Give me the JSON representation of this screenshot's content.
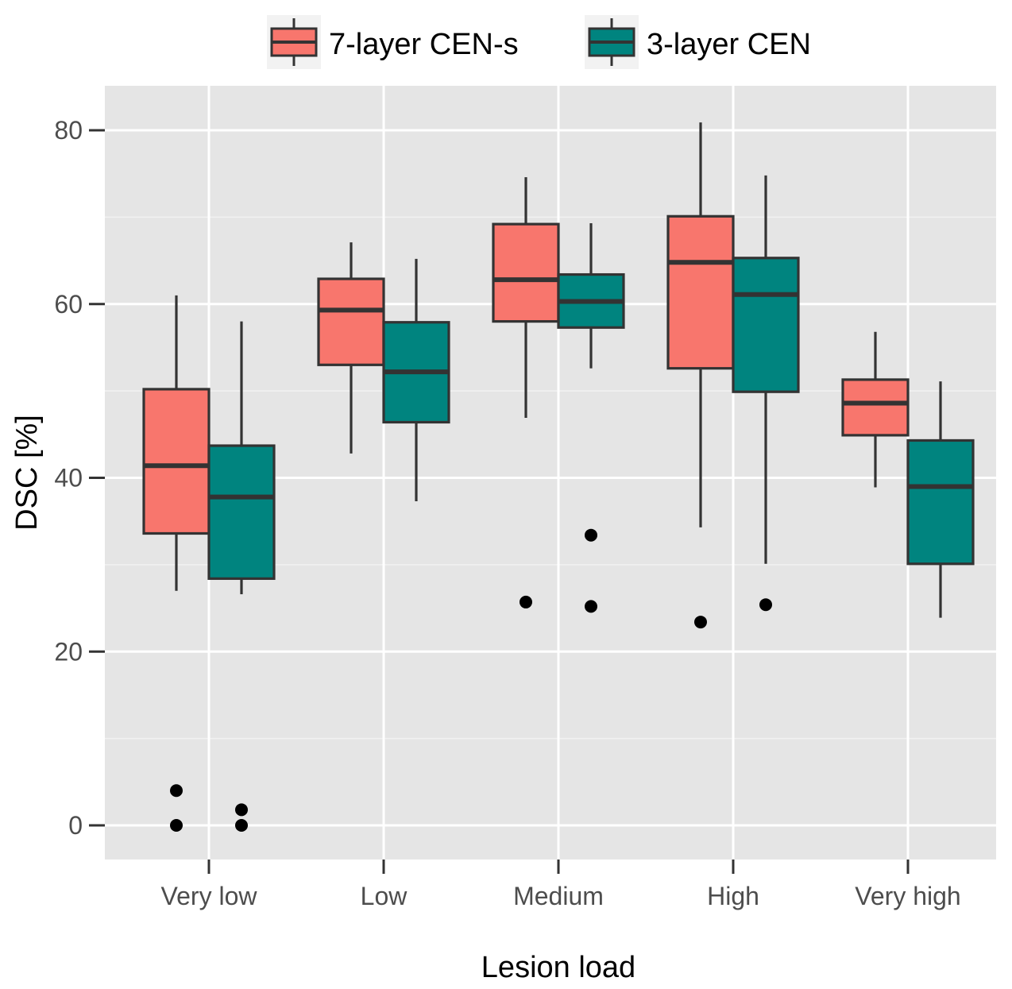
{
  "chart_data": {
    "type": "boxplot",
    "xlabel": "Lesion load",
    "ylabel": "DSC [%]",
    "ylim": [
      -4,
      85
    ],
    "yticks": [
      0,
      20,
      40,
      60,
      80
    ],
    "categories": [
      "Very low",
      "Low",
      "Medium",
      "High",
      "Very high"
    ],
    "grid": true,
    "legend_position": "top",
    "series": [
      {
        "name": "7-layer CEN-s",
        "color": "#F8766D",
        "boxes": [
          {
            "whisker_low": 27,
            "q1": 33.6,
            "median": 41.4,
            "q3": 50.2,
            "whisker_high": 61,
            "outliers": [
              4,
              0
            ]
          },
          {
            "whisker_low": 42.8,
            "q1": 53,
            "median": 59.3,
            "q3": 62.9,
            "whisker_high": 67.1,
            "outliers": []
          },
          {
            "whisker_low": 46.9,
            "q1": 58,
            "median": 62.8,
            "q3": 69.2,
            "whisker_high": 74.6,
            "outliers": [
              25.7
            ]
          },
          {
            "whisker_low": 34.3,
            "q1": 52.6,
            "median": 64.8,
            "q3": 70.1,
            "whisker_high": 80.9,
            "outliers": [
              23.4
            ]
          },
          {
            "whisker_low": 38.9,
            "q1": 44.9,
            "median": 48.6,
            "q3": 51.3,
            "whisker_high": 56.8,
            "outliers": []
          }
        ]
      },
      {
        "name": "3-layer CEN",
        "color": "#00847F",
        "boxes": [
          {
            "whisker_low": 26.6,
            "q1": 28.4,
            "median": 37.8,
            "q3": 43.7,
            "whisker_high": 58,
            "outliers": [
              1.8,
              0
            ]
          },
          {
            "whisker_low": 37.3,
            "q1": 46.4,
            "median": 52.2,
            "q3": 57.9,
            "whisker_high": 65.2,
            "outliers": []
          },
          {
            "whisker_low": 52.6,
            "q1": 57.3,
            "median": 60.3,
            "q3": 63.4,
            "whisker_high": 69.3,
            "outliers": [
              33.4,
              25.2
            ]
          },
          {
            "whisker_low": 30.1,
            "q1": 49.9,
            "median": 61.1,
            "q3": 65.3,
            "whisker_high": 74.8,
            "outliers": [
              25.4
            ]
          },
          {
            "whisker_low": 23.9,
            "q1": 30.1,
            "median": 39,
            "q3": 44.3,
            "whisker_high": 51.1,
            "outliers": []
          }
        ]
      }
    ]
  }
}
